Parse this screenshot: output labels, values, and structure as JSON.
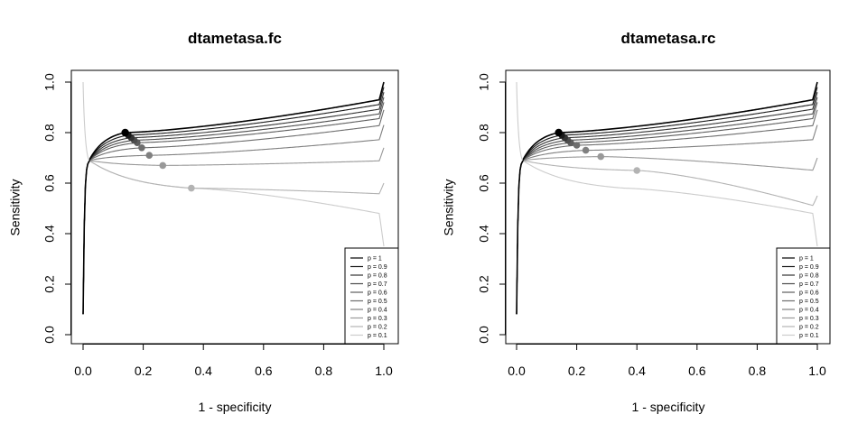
{
  "chart_data": [
    {
      "type": "line",
      "title": "dtametasa.fc",
      "xlabel": "1 - specificity",
      "ylabel": "Sensitivity",
      "xlim": [
        0,
        1
      ],
      "ylim": [
        0,
        1
      ],
      "xticks": [
        "0.0",
        "0.2",
        "0.4",
        "0.6",
        "0.8",
        "1.0"
      ],
      "yticks": [
        "0.0",
        "0.2",
        "0.4",
        "0.6",
        "0.8",
        "1.0"
      ],
      "grid": false,
      "legend_position": "bottom-right",
      "series": [
        {
          "name": "p = 1",
          "color": "#000000",
          "point": [
            0.14,
            0.8
          ],
          "right_end": 1.0
        },
        {
          "name": "p = 0.9",
          "color": "#1a1a1a",
          "point": [
            0.15,
            0.79
          ],
          "right_end": 0.98
        },
        {
          "name": "p = 0.8",
          "color": "#333333",
          "point": [
            0.16,
            0.78
          ],
          "right_end": 0.96
        },
        {
          "name": "p = 0.7",
          "color": "#4d4d4d",
          "point": [
            0.17,
            0.77
          ],
          "right_end": 0.94
        },
        {
          "name": "p = 0.6",
          "color": "#5e5e5e",
          "point": [
            0.18,
            0.76
          ],
          "right_end": 0.92
        },
        {
          "name": "p = 0.5",
          "color": "#6e6e6e",
          "point": [
            0.195,
            0.74
          ],
          "right_end": 0.89
        },
        {
          "name": "p = 0.4",
          "color": "#808080",
          "point": [
            0.22,
            0.71
          ],
          "right_end": 0.83
        },
        {
          "name": "p = 0.3",
          "color": "#999999",
          "point": [
            0.265,
            0.67
          ],
          "right_end": 0.74
        },
        {
          "name": "p = 0.2",
          "color": "#b3b3b3",
          "point": [
            0.36,
            0.58
          ],
          "right_end": 0.6
        },
        {
          "name": "p = 0.1",
          "color": "#cccccc",
          "point": null,
          "right_end": 0.35
        }
      ]
    },
    {
      "type": "line",
      "title": "dtametasa.rc",
      "xlabel": "1 - specificity",
      "ylabel": "Sensitivity",
      "xlim": [
        0,
        1
      ],
      "ylim": [
        0,
        1
      ],
      "xticks": [
        "0.0",
        "0.2",
        "0.4",
        "0.6",
        "0.8",
        "1.0"
      ],
      "yticks": [
        "0.0",
        "0.2",
        "0.4",
        "0.6",
        "0.8",
        "1.0"
      ],
      "grid": false,
      "legend_position": "bottom-right",
      "series": [
        {
          "name": "p = 1",
          "color": "#000000",
          "point": [
            0.14,
            0.8
          ],
          "right_end": 1.0
        },
        {
          "name": "p = 0.9",
          "color": "#1a1a1a",
          "point": [
            0.15,
            0.79
          ],
          "right_end": 0.98
        },
        {
          "name": "p = 0.8",
          "color": "#333333",
          "point": [
            0.16,
            0.78
          ],
          "right_end": 0.96
        },
        {
          "name": "p = 0.7",
          "color": "#4d4d4d",
          "point": [
            0.17,
            0.77
          ],
          "right_end": 0.94
        },
        {
          "name": "p = 0.6",
          "color": "#5e5e5e",
          "point": [
            0.18,
            0.76
          ],
          "right_end": 0.92
        },
        {
          "name": "p = 0.5",
          "color": "#6e6e6e",
          "point": [
            0.2,
            0.75
          ],
          "right_end": 0.89
        },
        {
          "name": "p = 0.4",
          "color": "#808080",
          "point": [
            0.23,
            0.73
          ],
          "right_end": 0.83
        },
        {
          "name": "p = 0.3",
          "color": "#999999",
          "point": [
            0.28,
            0.705
          ],
          "right_end": 0.7
        },
        {
          "name": "p = 0.2",
          "color": "#b3b3b3",
          "point": [
            0.4,
            0.65
          ],
          "right_end": 0.55
        },
        {
          "name": "p = 0.1",
          "color": "#cccccc",
          "point": null,
          "right_end": 0.35
        }
      ]
    }
  ]
}
